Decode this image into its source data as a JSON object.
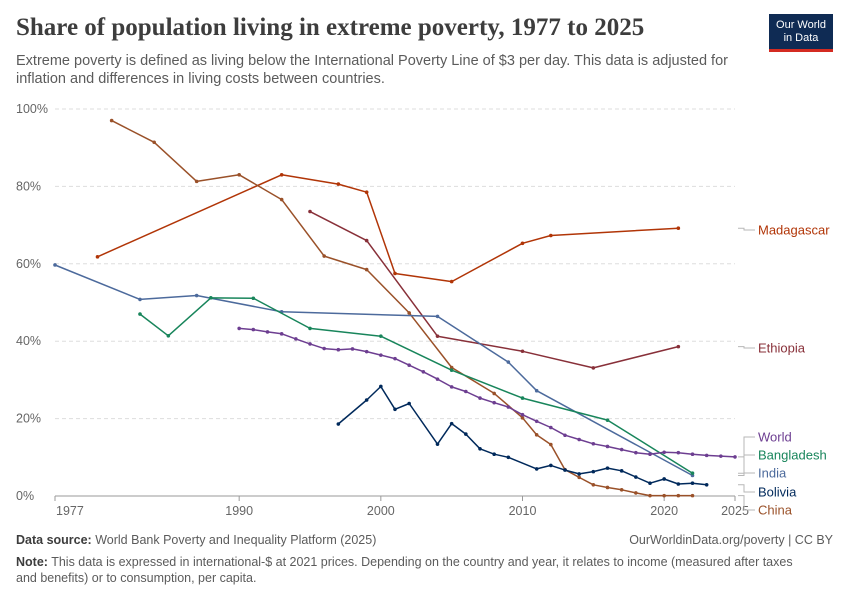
{
  "header": {
    "title": "Share of population living in extreme poverty, 1977 to 2025",
    "subtitle": "Extreme poverty is defined as living below the International Poverty Line of $3 per day. This data is adjusted for inflation and differences in living costs between countries.",
    "logo_line1": "Our World",
    "logo_line2": "in Data"
  },
  "footer": {
    "source_label": "Data source:",
    "source_text": "World Bank Poverty and Inequality Platform (2025)",
    "credit": "OurWorldinData.org/poverty | CC BY",
    "note_label": "Note:",
    "note_text": "This data is expressed in international-$ at 2021 prices. Depending on the country and year, it relates to income (measured after taxes and benefits) or to consumption, per capita."
  },
  "colors": {
    "grid": "#dddddd",
    "axis": "#9a9a9a",
    "label": "#666666",
    "connector": "#b7b7b7"
  },
  "chart_data": {
    "type": "line",
    "xlim": [
      1977,
      2025
    ],
    "ylim": [
      0,
      100
    ],
    "x_ticks": [
      1977,
      1990,
      2000,
      2010,
      2020,
      2025
    ],
    "y_ticks": [
      0,
      20,
      40,
      60,
      80,
      100
    ],
    "y_tick_labels": [
      "0%",
      "20%",
      "40%",
      "60%",
      "80%",
      "100%"
    ],
    "grid": true,
    "legend": "right-labels",
    "series": [
      {
        "name": "Madagascar",
        "color": "#b13507",
        "points": [
          [
            1980,
            61.8
          ],
          [
            1993,
            83
          ],
          [
            1997,
            80.6
          ],
          [
            1999,
            78.5
          ],
          [
            2001,
            57.5
          ],
          [
            2005,
            55.4
          ],
          [
            2010,
            65.3
          ],
          [
            2012,
            67.3
          ],
          [
            2021,
            69.2
          ]
        ]
      },
      {
        "name": "Ethiopia",
        "color": "#883039",
        "points": [
          [
            1995,
            73.5
          ],
          [
            1999,
            66
          ],
          [
            2004,
            41.3
          ],
          [
            2010,
            37.4
          ],
          [
            2015,
            33.1
          ],
          [
            2021,
            38.6
          ]
        ]
      },
      {
        "name": "China",
        "color": "#9a5129",
        "points": [
          [
            1981,
            97
          ],
          [
            1984,
            91.4
          ],
          [
            1987,
            81.3
          ],
          [
            1990,
            83
          ],
          [
            1993,
            76.6
          ],
          [
            1996,
            62
          ],
          [
            1999,
            58.5
          ],
          [
            2002,
            47.3
          ],
          [
            2005,
            33.2
          ],
          [
            2008,
            26.5
          ],
          [
            2010,
            20.2
          ],
          [
            2011,
            15.8
          ],
          [
            2012,
            13.3
          ],
          [
            2013,
            6.8
          ],
          [
            2014,
            4.8
          ],
          [
            2015,
            2.9
          ],
          [
            2016,
            2.2
          ],
          [
            2017,
            1.6
          ],
          [
            2018,
            0.8
          ],
          [
            2019,
            0.1
          ],
          [
            2020,
            0.1
          ],
          [
            2021,
            0.1
          ],
          [
            2022,
            0.1
          ]
        ]
      },
      {
        "name": "India",
        "color": "#4c6a9c",
        "points": [
          [
            1977,
            59.7
          ],
          [
            1983,
            50.8
          ],
          [
            1987,
            51.8
          ],
          [
            1993,
            47.6
          ],
          [
            2004,
            46.4
          ],
          [
            2009,
            34.6
          ],
          [
            2011,
            27.2
          ],
          [
            2022,
            5.3
          ]
        ]
      },
      {
        "name": "Bangladesh",
        "color": "#18855b",
        "points": [
          [
            1983,
            47
          ],
          [
            1985,
            41.4
          ],
          [
            1988,
            51.2
          ],
          [
            1991,
            51.1
          ],
          [
            1995,
            43.3
          ],
          [
            2000,
            41.3
          ],
          [
            2005,
            32.5
          ],
          [
            2010,
            25.3
          ],
          [
            2016,
            19.6
          ],
          [
            2022,
            5.9
          ]
        ]
      },
      {
        "name": "World",
        "color": "#6d3e91",
        "points": [
          [
            1990,
            43.3
          ],
          [
            1991,
            43
          ],
          [
            1992,
            42.4
          ],
          [
            1993,
            41.9
          ],
          [
            1994,
            40.6
          ],
          [
            1995,
            39.3
          ],
          [
            1996,
            38.1
          ],
          [
            1997,
            37.8
          ],
          [
            1998,
            38
          ],
          [
            1999,
            37.3
          ],
          [
            2000,
            36.4
          ],
          [
            2001,
            35.5
          ],
          [
            2002,
            33.8
          ],
          [
            2003,
            32.1
          ],
          [
            2004,
            30.2
          ],
          [
            2005,
            28.2
          ],
          [
            2006,
            27
          ],
          [
            2007,
            25.3
          ],
          [
            2008,
            24.1
          ],
          [
            2009,
            23
          ],
          [
            2010,
            21
          ],
          [
            2011,
            19.3
          ],
          [
            2012,
            17.7
          ],
          [
            2013,
            15.7
          ],
          [
            2014,
            14.6
          ],
          [
            2015,
            13.5
          ],
          [
            2016,
            12.8
          ],
          [
            2017,
            12
          ],
          [
            2018,
            11.2
          ],
          [
            2019,
            10.8
          ],
          [
            2020,
            11.3
          ],
          [
            2021,
            11.2
          ],
          [
            2022,
            10.8
          ],
          [
            2023,
            10.5
          ],
          [
            2024,
            10.3
          ],
          [
            2025,
            10.1
          ]
        ]
      },
      {
        "name": "Bolivia",
        "color": "#00295b",
        "points": [
          [
            1997,
            18.6
          ],
          [
            1999,
            24.8
          ],
          [
            2000,
            28.3
          ],
          [
            2001,
            22.4
          ],
          [
            2002,
            23.9
          ],
          [
            2004,
            13.4
          ],
          [
            2005,
            18.7
          ],
          [
            2006,
            16
          ],
          [
            2007,
            12.2
          ],
          [
            2008,
            10.8
          ],
          [
            2009,
            10
          ],
          [
            2011,
            7
          ],
          [
            2012,
            7.9
          ],
          [
            2013,
            6.7
          ],
          [
            2014,
            5.7
          ],
          [
            2015,
            6.3
          ],
          [
            2016,
            7.2
          ],
          [
            2017,
            6.5
          ],
          [
            2018,
            4.9
          ],
          [
            2019,
            3.3
          ],
          [
            2020,
            4.4
          ],
          [
            2021,
            3.1
          ],
          [
            2022,
            3.3
          ],
          [
            2023,
            2.9
          ]
        ]
      }
    ],
    "labels": [
      {
        "name": "Madagascar",
        "color": "#b13507",
        "anchor": 69.2
      },
      {
        "name": "Ethiopia",
        "color": "#883039",
        "anchor": 38.6
      },
      {
        "name": "World",
        "color": "#6d3e91",
        "anchor": 10.1
      },
      {
        "name": "Bangladesh",
        "color": "#18855b",
        "anchor": 5.9
      },
      {
        "name": "India",
        "color": "#4c6a9c",
        "anchor": 5.3
      },
      {
        "name": "Bolivia",
        "color": "#00295b",
        "anchor": 2.9
      },
      {
        "name": "China",
        "color": "#9a5129",
        "anchor": 0.1
      }
    ]
  }
}
